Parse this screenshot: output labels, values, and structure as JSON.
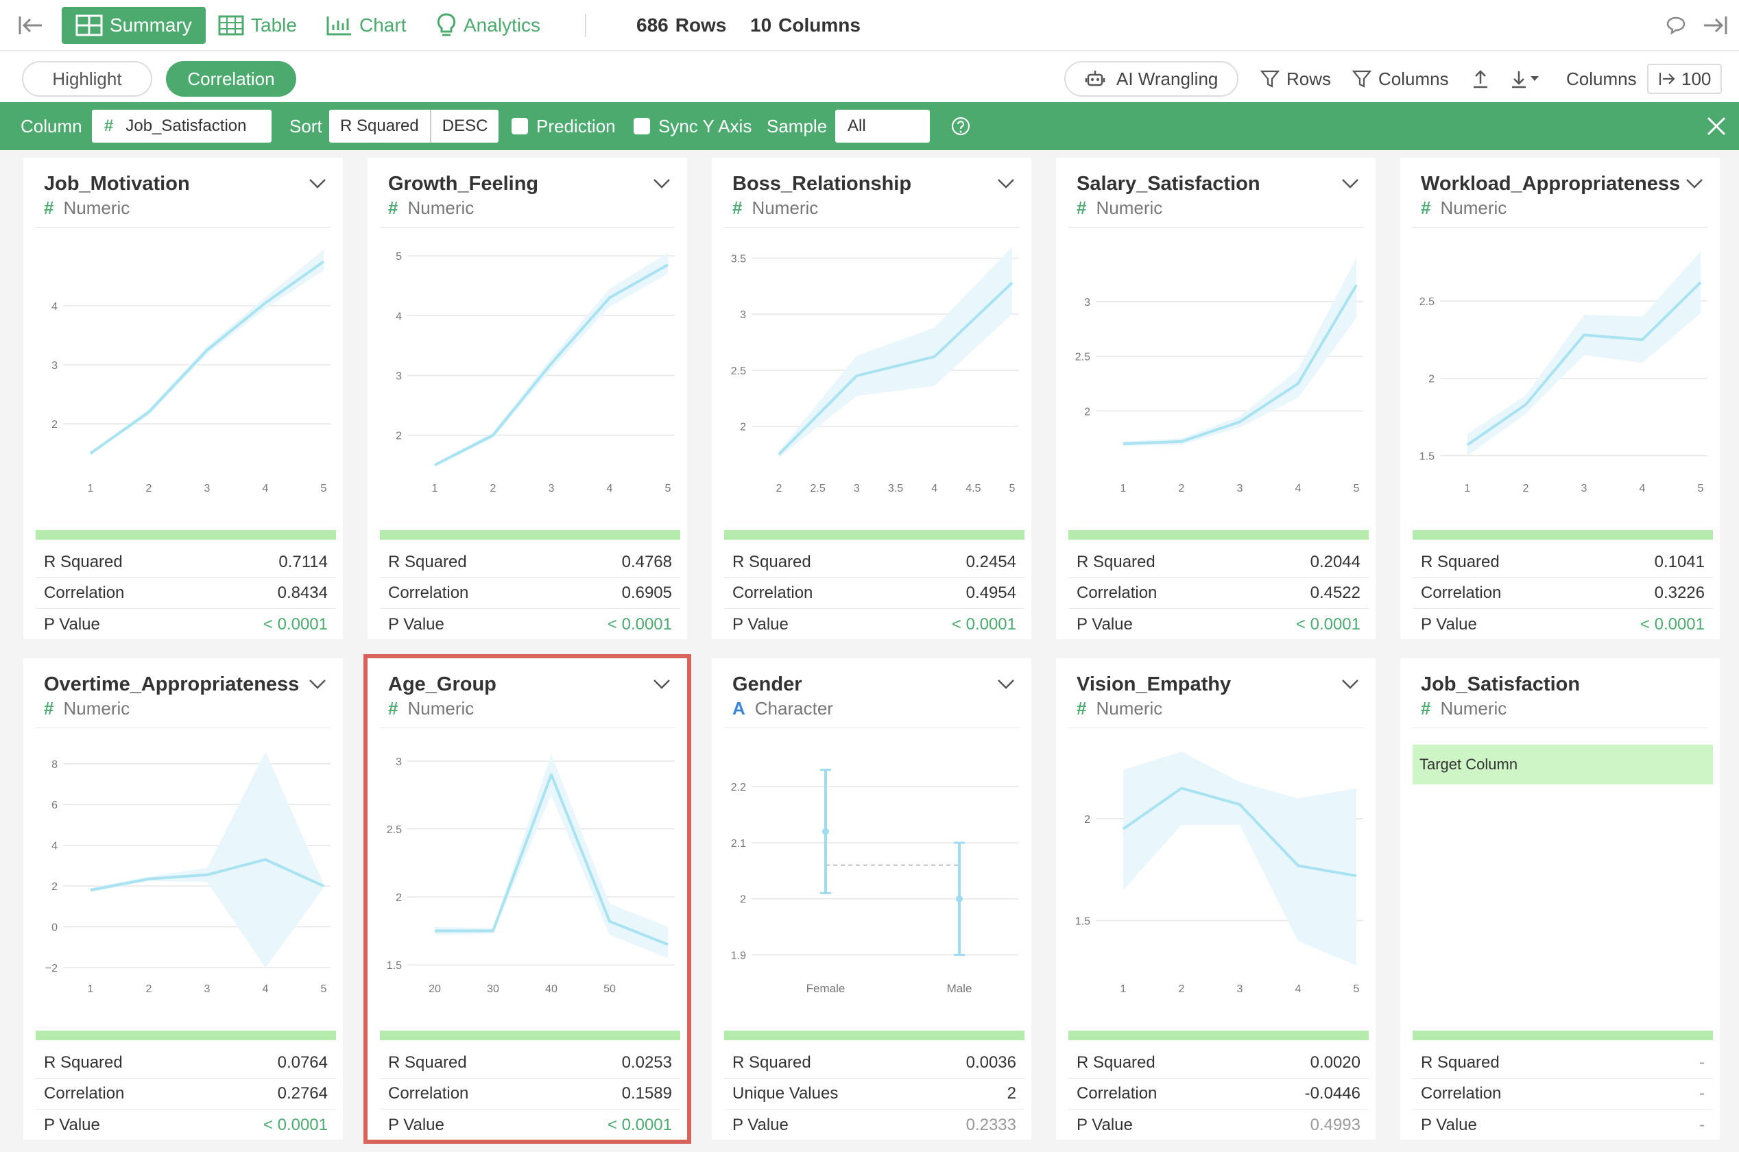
{
  "topbar": {
    "summary": "Summary",
    "table": "Table",
    "chart": "Chart",
    "analytics": "Analytics",
    "rows_count": "686",
    "rows_label": "Rows",
    "cols_count": "10",
    "cols_label": "Columns"
  },
  "toolbar": {
    "highlight": "Highlight",
    "correlation": "Correlation",
    "ai_wrangling": "AI Wrangling",
    "rows": "Rows",
    "columns": "Columns",
    "columns_label": "Columns",
    "columns_value": "100"
  },
  "filter": {
    "column_label": "Column",
    "column_value": "Job_Satisfaction",
    "sort_label": "Sort",
    "sort_value": "R Squared",
    "sort_order": "DESC",
    "prediction": "Prediction",
    "sync_y": "Sync Y Axis",
    "sample_label": "Sample",
    "sample_value": "All"
  },
  "cards": [
    {
      "title": "Job_Motivation",
      "type": "Numeric",
      "s1_label": "R Squared",
      "s1": "0.7114",
      "s2_label": "Correlation",
      "s2": "0.8434",
      "s3_label": "P Value",
      "s3": "< 0.0001"
    },
    {
      "title": "Growth_Feeling",
      "type": "Numeric",
      "s1_label": "R Squared",
      "s1": "0.4768",
      "s2_label": "Correlation",
      "s2": "0.6905",
      "s3_label": "P Value",
      "s3": "< 0.0001"
    },
    {
      "title": "Boss_Relationship",
      "type": "Numeric",
      "s1_label": "R Squared",
      "s1": "0.2454",
      "s2_label": "Correlation",
      "s2": "0.4954",
      "s3_label": "P Value",
      "s3": "< 0.0001"
    },
    {
      "title": "Salary_Satisfaction",
      "type": "Numeric",
      "s1_label": "R Squared",
      "s1": "0.2044",
      "s2_label": "Correlation",
      "s2": "0.4522",
      "s3_label": "P Value",
      "s3": "< 0.0001"
    },
    {
      "title": "Workload_Appropriateness",
      "type": "Numeric",
      "s1_label": "R Squared",
      "s1": "0.1041",
      "s2_label": "Correlation",
      "s2": "0.3226",
      "s3_label": "P Value",
      "s3": "< 0.0001"
    },
    {
      "title": "Overtime_Appropriateness",
      "type": "Numeric",
      "s1_label": "R Squared",
      "s1": "0.0764",
      "s2_label": "Correlation",
      "s2": "0.2764",
      "s3_label": "P Value",
      "s3": "< 0.0001"
    },
    {
      "title": "Age_Group",
      "type": "Numeric",
      "s1_label": "R Squared",
      "s1": "0.0253",
      "s2_label": "Correlation",
      "s2": "0.1589",
      "s3_label": "P Value",
      "s3": "< 0.0001"
    },
    {
      "title": "Gender",
      "type": "Character",
      "s1_label": "R Squared",
      "s1": "0.0036",
      "s2_label": "Unique Values",
      "s2": "2",
      "s3_label": "P Value",
      "s3": "0.2333"
    },
    {
      "title": "Vision_Empathy",
      "type": "Numeric",
      "s1_label": "R Squared",
      "s1": "0.0020",
      "s2_label": "Correlation",
      "s2": "-0.0446",
      "s3_label": "P Value",
      "s3": "0.4993"
    },
    {
      "title": "Job_Satisfaction",
      "type": "Numeric",
      "target": "Target Column",
      "s1_label": "R Squared",
      "s1": "-",
      "s2_label": "Correlation",
      "s2": "-",
      "s3_label": "P Value",
      "s3": "-"
    }
  ],
  "chart_data": [
    {
      "type": "line",
      "x": [
        1,
        2,
        3,
        4,
        5
      ],
      "y": [
        1.5,
        2.2,
        3.25,
        4.05,
        4.75
      ],
      "lo": [
        1.48,
        2.15,
        3.18,
        3.95,
        4.6
      ],
      "hi": [
        1.52,
        2.25,
        3.32,
        4.15,
        4.95
      ],
      "xticks": [
        "1",
        "2",
        "3",
        "4",
        "5"
      ],
      "yticks": [
        2,
        3,
        4
      ],
      "yticklabels": [
        "2",
        "3",
        "4"
      ],
      "ylim": [
        1.2,
        5.0
      ],
      "xlim": [
        1,
        5
      ]
    },
    {
      "type": "line",
      "x": [
        1,
        2,
        3,
        4,
        5
      ],
      "y": [
        1.5,
        2.0,
        3.2,
        4.3,
        4.85
      ],
      "lo": [
        1.48,
        1.95,
        3.1,
        4.15,
        4.7
      ],
      "hi": [
        1.52,
        2.05,
        3.3,
        4.45,
        5.05
      ],
      "xticks": [
        "1",
        "2",
        "3",
        "4",
        "5"
      ],
      "yticks": [
        2,
        3,
        4,
        5
      ],
      "yticklabels": [
        "2",
        "3",
        "4",
        "5"
      ],
      "ylim": [
        1.4,
        5.15
      ],
      "xlim": [
        1,
        5
      ]
    },
    {
      "type": "line",
      "x": [
        2,
        3,
        4,
        5
      ],
      "y": [
        1.75,
        2.45,
        2.62,
        3.28
      ],
      "lo": [
        1.72,
        2.27,
        2.36,
        3.0
      ],
      "hi": [
        1.78,
        2.63,
        2.88,
        3.6
      ],
      "xticks": [
        "2",
        "2.5",
        "3",
        "3.5",
        "4",
        "4.5",
        "5"
      ],
      "xtickvals": [
        2,
        2.5,
        3,
        3.5,
        4,
        4.5,
        5
      ],
      "yticks": [
        2,
        2.5,
        3,
        3.5
      ],
      "yticklabels": [
        "2",
        "2.5",
        "3",
        "3.5"
      ],
      "ylim": [
        1.6,
        3.6
      ],
      "xlim": [
        2,
        5
      ]
    },
    {
      "type": "line",
      "x": [
        1,
        2,
        3,
        4,
        5
      ],
      "y": [
        1.7,
        1.72,
        1.9,
        2.25,
        3.15
      ],
      "lo": [
        1.68,
        1.69,
        1.85,
        2.12,
        2.85
      ],
      "hi": [
        1.72,
        1.75,
        1.95,
        2.38,
        3.4
      ],
      "xticks": [
        "1",
        "2",
        "3",
        "4",
        "5"
      ],
      "yticks": [
        2,
        2.5,
        3
      ],
      "yticklabels": [
        "2",
        "2.5",
        "3"
      ],
      "ylim": [
        1.45,
        3.5
      ],
      "xlim": [
        1,
        5
      ]
    },
    {
      "type": "line",
      "x": [
        1,
        2,
        3,
        4,
        5
      ],
      "y": [
        1.57,
        1.83,
        2.28,
        2.25,
        2.62
      ],
      "lo": [
        1.5,
        1.77,
        2.15,
        2.1,
        2.42
      ],
      "hi": [
        1.64,
        1.89,
        2.41,
        2.4,
        2.82
      ],
      "xticks": [
        "1",
        "2",
        "3",
        "4",
        "5"
      ],
      "yticks": [
        1.5,
        2,
        2.5
      ],
      "yticklabels": [
        "1.5",
        "2",
        "2.5"
      ],
      "ylim": [
        1.4,
        2.85
      ],
      "xlim": [
        1,
        5
      ]
    },
    {
      "type": "line",
      "x": [
        1,
        2,
        3,
        4,
        5
      ],
      "y": [
        1.8,
        2.35,
        2.55,
        3.3,
        2.0
      ],
      "lo": [
        1.7,
        2.25,
        2.2,
        -2.0,
        1.9
      ],
      "hi": [
        1.9,
        2.45,
        2.9,
        8.6,
        2.1
      ],
      "xticks": [
        "1",
        "2",
        "3",
        "4",
        "5"
      ],
      "yticks": [
        -2,
        0,
        2,
        4,
        6,
        8
      ],
      "yticklabels": [
        "−2",
        "0",
        "2",
        "4",
        "6",
        "8"
      ],
      "ylim": [
        -2.2,
        8.8
      ],
      "xlim": [
        1,
        5
      ]
    },
    {
      "type": "line",
      "x": [
        20,
        30,
        40,
        50,
        60
      ],
      "y": [
        1.75,
        1.75,
        2.9,
        1.82,
        1.65
      ],
      "lo": [
        1.72,
        1.73,
        2.75,
        1.72,
        1.55
      ],
      "hi": [
        1.78,
        1.77,
        3.05,
        1.95,
        1.78
      ],
      "xticks": [
        "20",
        "30",
        "40",
        "50"
      ],
      "xtickvals": [
        20,
        30,
        40,
        50
      ],
      "yticks": [
        1.5,
        2,
        2.5,
        3
      ],
      "yticklabels": [
        "1.5",
        "2",
        "2.5",
        "3"
      ],
      "ylim": [
        1.45,
        3.1
      ],
      "xlim": [
        20,
        60
      ]
    },
    {
      "type": "errorbar",
      "categories": [
        "Female",
        "Male"
      ],
      "mean": [
        2.12,
        2.0
      ],
      "lo": [
        2.01,
        1.9
      ],
      "hi": [
        2.23,
        2.1
      ],
      "overall": 2.06,
      "yticks": [
        1.9,
        2,
        2.1,
        2.2
      ],
      "yticklabels": [
        "1.9",
        "2",
        "2.1",
        "2.2"
      ],
      "ylim": [
        1.87,
        2.27
      ]
    },
    {
      "type": "line",
      "x": [
        1,
        2,
        3,
        4,
        5
      ],
      "y": [
        1.95,
        2.15,
        2.07,
        1.77,
        1.72
      ],
      "lo": [
        1.65,
        1.97,
        1.97,
        1.4,
        1.28
      ],
      "hi": [
        2.24,
        2.33,
        2.18,
        2.1,
        2.15
      ],
      "xticks": [
        "1",
        "2",
        "3",
        "4",
        "5"
      ],
      "yticks": [
        1.5,
        2
      ],
      "yticklabels": [
        "1.5",
        "2"
      ],
      "ylim": [
        1.25,
        2.35
      ],
      "xlim": [
        1,
        5
      ]
    },
    null
  ],
  "colors": {
    "accent": "#4caa6f",
    "line": "#a9e3f1",
    "band": "#e9f7fd",
    "highlight": "#d9625a"
  }
}
